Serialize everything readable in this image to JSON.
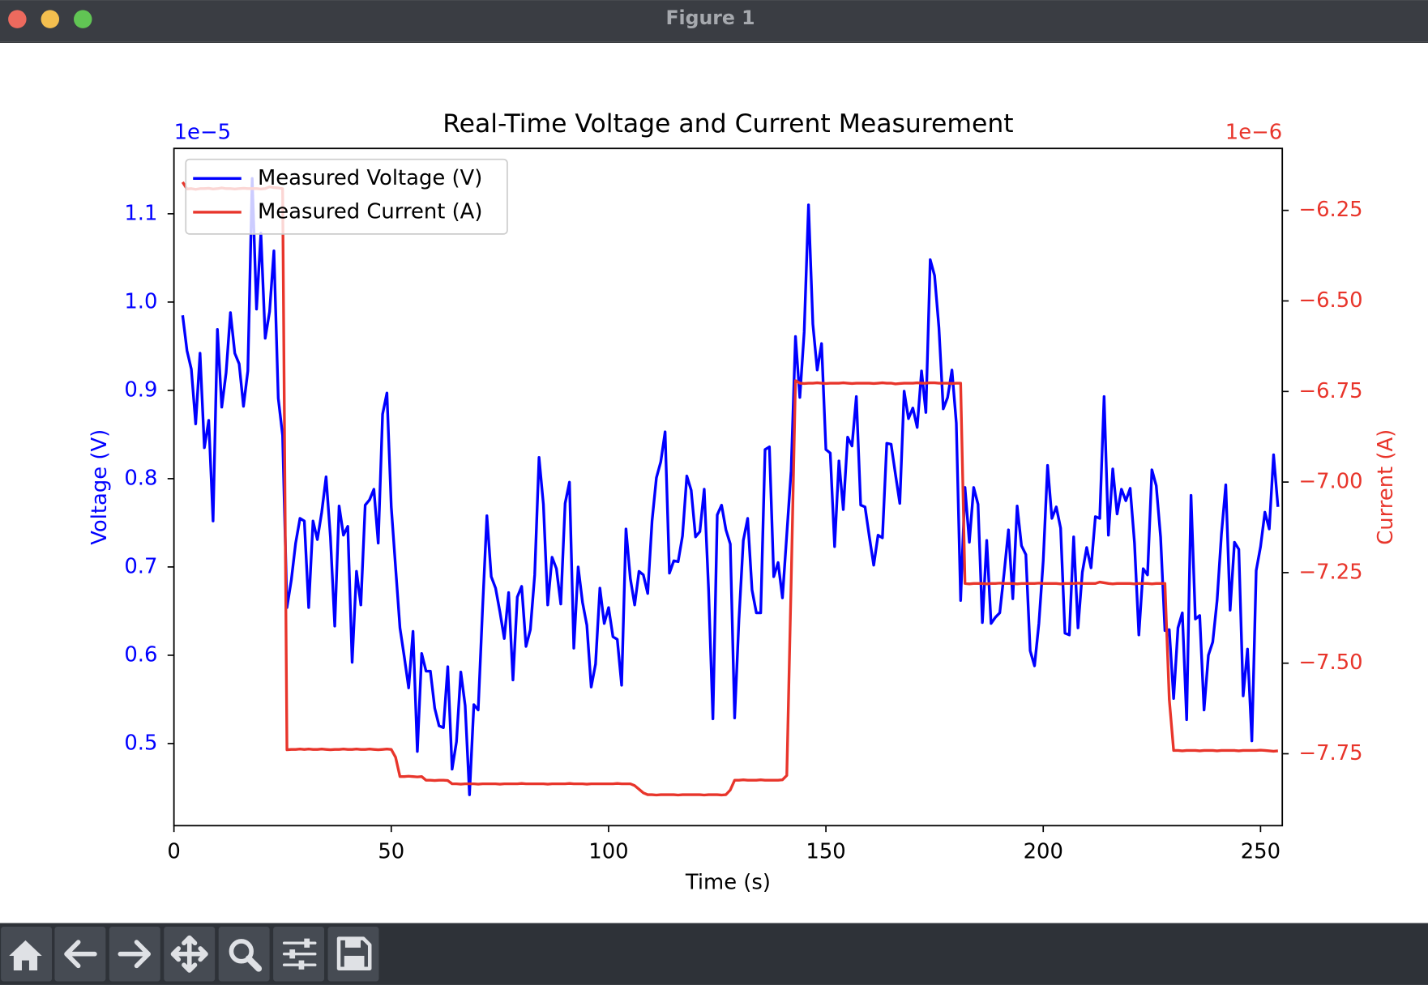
{
  "window": {
    "title": "Figure 1"
  },
  "chart_data": {
    "type": "line",
    "title": "Real-Time Voltage and Current Measurement",
    "x_label": "Time (s)",
    "y_label": "Voltage (V)",
    "y2_label": "Current (A)",
    "y_offset": "1e−5",
    "y2_offset": "1e−6",
    "legend": "upper left",
    "xlim": [
      0,
      255
    ],
    "ylim": [
      0.407,
      1.174
    ],
    "y2lim": [
      -7.9485,
      -6.079
    ],
    "xticks": [
      0,
      50,
      100,
      150,
      200,
      250
    ],
    "yticks": [
      0.5,
      0.6,
      0.7,
      0.8,
      0.9,
      {
        "value": 1,
        "label": "1.0"
      },
      1.1
    ],
    "y2ticks": [
      {
        "value": -7.75,
        "label": "−7.75"
      },
      {
        "value": -7.5,
        "label": "−7.50"
      },
      {
        "value": -7.25,
        "label": "−7.25"
      },
      {
        "value": -7,
        "label": "−7.00"
      },
      {
        "value": -6.75,
        "label": "−6.75"
      },
      {
        "value": -6.5,
        "label": "−6.50"
      },
      {
        "value": -6.25,
        "label": "−6.25"
      }
    ],
    "x": [
      2,
      3,
      4,
      5,
      6,
      7,
      8,
      9,
      10,
      11,
      12,
      13,
      14,
      15,
      16,
      17,
      18,
      19,
      20,
      21,
      22,
      23,
      24,
      25,
      26,
      27,
      28,
      29,
      30,
      31,
      32,
      33,
      34,
      35,
      36,
      37,
      38,
      39,
      40,
      41,
      42,
      43,
      44,
      45,
      46,
      47,
      48,
      49,
      50,
      51,
      52,
      53,
      54,
      55,
      56,
      57,
      58,
      59,
      60,
      61,
      62,
      63,
      64,
      65,
      66,
      67,
      68,
      69,
      70,
      71,
      72,
      73,
      74,
      75,
      76,
      77,
      78,
      79,
      80,
      81,
      82,
      83,
      84,
      85,
      86,
      87,
      88,
      89,
      90,
      91,
      92,
      93,
      94,
      95,
      96,
      97,
      98,
      99,
      100,
      101,
      102,
      103,
      104,
      105,
      106,
      107,
      108,
      109,
      110,
      111,
      112,
      113,
      114,
      115,
      116,
      117,
      118,
      119,
      120,
      121,
      122,
      123,
      124,
      125,
      126,
      127,
      128,
      129,
      130,
      131,
      132,
      133,
      134,
      135,
      136,
      137,
      138,
      139,
      140,
      141,
      142,
      143,
      144,
      145,
      146,
      147,
      148,
      149,
      150,
      151,
      152,
      153,
      154,
      155,
      156,
      157,
      158,
      159,
      160,
      161,
      162,
      163,
      164,
      165,
      166,
      167,
      168,
      169,
      170,
      171,
      172,
      173,
      174,
      175,
      176,
      177,
      178,
      179,
      180,
      181,
      182,
      183,
      184,
      185,
      186,
      187,
      188,
      189,
      190,
      191,
      192,
      193,
      194,
      195,
      196,
      197,
      198,
      199,
      200,
      201,
      202,
      203,
      204,
      205,
      206,
      207,
      208,
      209,
      210,
      211,
      212,
      213,
      214,
      215,
      216,
      217,
      218,
      219,
      220,
      221,
      222,
      223,
      224,
      225,
      226,
      227,
      228,
      229,
      230,
      231,
      232,
      233,
      234,
      235,
      236,
      237,
      238,
      239,
      240,
      241,
      242,
      243,
      244,
      245,
      246,
      247,
      248,
      249,
      250,
      251,
      252,
      253,
      254
    ],
    "series": [
      {
        "name": "Measured Voltage (V)",
        "color": "#0000ff",
        "values": [
          0.985,
          0.945,
          0.924,
          0.862,
          0.942,
          0.835,
          0.866,
          0.752,
          0.969,
          0.881,
          0.92,
          0.988,
          0.942,
          0.93,
          0.882,
          0.922,
          1.14,
          0.992,
          1.078,
          0.959,
          0.989,
          1.058,
          0.891,
          0.849,
          0.654,
          0.685,
          0.727,
          0.755,
          0.752,
          0.654,
          0.752,
          0.731,
          0.762,
          0.802,
          0.734,
          0.633,
          0.769,
          0.736,
          0.746,
          0.592,
          0.695,
          0.657,
          0.77,
          0.776,
          0.788,
          0.727,
          0.873,
          0.897,
          0.768,
          0.699,
          0.631,
          0.598,
          0.563,
          0.627,
          0.491,
          0.602,
          0.582,
          0.582,
          0.54,
          0.52,
          0.518,
          0.587,
          0.471,
          0.502,
          0.581,
          0.543,
          0.442,
          0.544,
          0.538,
          0.652,
          0.758,
          0.689,
          0.676,
          0.649,
          0.619,
          0.671,
          0.572,
          0.666,
          0.678,
          0.61,
          0.629,
          0.691,
          0.824,
          0.771,
          0.657,
          0.711,
          0.698,
          0.658,
          0.772,
          0.796,
          0.608,
          0.7,
          0.66,
          0.634,
          0.564,
          0.59,
          0.676,
          0.636,
          0.654,
          0.621,
          0.618,
          0.566,
          0.743,
          0.687,
          0.657,
          0.695,
          0.691,
          0.67,
          0.752,
          0.801,
          0.819,
          0.853,
          0.693,
          0.707,
          0.706,
          0.735,
          0.803,
          0.787,
          0.734,
          0.74,
          0.788,
          0.675,
          0.528,
          0.759,
          0.77,
          0.742,
          0.726,
          0.529,
          0.641,
          0.73,
          0.755,
          0.674,
          0.648,
          0.648,
          0.833,
          0.836,
          0.689,
          0.705,
          0.665,
          0.737,
          0.809,
          0.961,
          0.892,
          0.966,
          1.11,
          0.975,
          0.923,
          0.953,
          0.833,
          0.829,
          0.723,
          0.82,
          0.765,
          0.847,
          0.837,
          0.893,
          0.77,
          0.768,
          0.734,
          0.702,
          0.736,
          0.733,
          0.84,
          0.839,
          0.805,
          0.772,
          0.899,
          0.868,
          0.88,
          0.858,
          0.922,
          0.875,
          1.048,
          1.03,
          0.971,
          0.879,
          0.892,
          0.923,
          0.863,
          0.662,
          0.79,
          0.728,
          0.79,
          0.771,
          0.637,
          0.73,
          0.636,
          0.643,
          0.648,
          0.693,
          0.742,
          0.664,
          0.769,
          0.724,
          0.714,
          0.605,
          0.588,
          0.636,
          0.707,
          0.815,
          0.755,
          0.768,
          0.744,
          0.625,
          0.623,
          0.734,
          0.631,
          0.694,
          0.722,
          0.699,
          0.757,
          0.755,
          0.893,
          0.736,
          0.811,
          0.76,
          0.788,
          0.775,
          0.789,
          0.727,
          0.623,
          0.698,
          0.691,
          0.81,
          0.792,
          0.734,
          0.628,
          0.629,
          0.551,
          0.631,
          0.648,
          0.527,
          0.781,
          0.641,
          0.645,
          0.538,
          0.6,
          0.615,
          0.662,
          0.737,
          0.793,
          0.651,
          0.728,
          0.72,
          0.554,
          0.607,
          0.503,
          0.696,
          0.723,
          0.762,
          0.743,
          0.827,
          0.768
        ]
      },
      {
        "name": "Measured Current (A)",
        "color": "#e8352b",
        "axis": "y2",
        "values": [
          -6.172,
          -6.191,
          -6.19,
          -6.192,
          -6.19,
          -6.19,
          -6.189,
          -6.191,
          -6.19,
          -6.188,
          -6.19,
          -6.19,
          -6.191,
          -6.19,
          -6.189,
          -6.19,
          -6.19,
          -6.19,
          -6.191,
          -6.19,
          -6.185,
          -6.187,
          -6.188,
          -6.19,
          -7.739,
          -7.738,
          -7.738,
          -7.737,
          -7.738,
          -7.737,
          -7.738,
          -7.738,
          -7.737,
          -7.738,
          -7.739,
          -7.738,
          -7.738,
          -7.737,
          -7.738,
          -7.738,
          -7.737,
          -7.738,
          -7.738,
          -7.737,
          -7.738,
          -7.739,
          -7.738,
          -7.737,
          -7.738,
          -7.76,
          -7.813,
          -7.813,
          -7.812,
          -7.813,
          -7.814,
          -7.813,
          -7.823,
          -7.823,
          -7.824,
          -7.823,
          -7.823,
          -7.824,
          -7.833,
          -7.833,
          -7.834,
          -7.833,
          -7.833,
          -7.833,
          -7.834,
          -7.833,
          -7.833,
          -7.833,
          -7.833,
          -7.834,
          -7.833,
          -7.833,
          -7.833,
          -7.833,
          -7.832,
          -7.833,
          -7.833,
          -7.833,
          -7.833,
          -7.833,
          -7.834,
          -7.833,
          -7.833,
          -7.833,
          -7.833,
          -7.832,
          -7.833,
          -7.833,
          -7.833,
          -7.834,
          -7.833,
          -7.833,
          -7.833,
          -7.833,
          -7.833,
          -7.833,
          -7.832,
          -7.833,
          -7.833,
          -7.833,
          -7.838,
          -7.848,
          -7.858,
          -7.863,
          -7.863,
          -7.864,
          -7.863,
          -7.863,
          -7.863,
          -7.863,
          -7.864,
          -7.863,
          -7.863,
          -7.863,
          -7.863,
          -7.863,
          -7.864,
          -7.863,
          -7.863,
          -7.863,
          -7.864,
          -7.863,
          -7.85,
          -7.823,
          -7.823,
          -7.822,
          -7.823,
          -7.823,
          -7.823,
          -7.822,
          -7.823,
          -7.823,
          -7.823,
          -7.823,
          -7.822,
          -7.81,
          -7.278,
          -6.72,
          -6.727,
          -6.728,
          -6.727,
          -6.727,
          -6.726,
          -6.727,
          -6.728,
          -6.727,
          -6.727,
          -6.727,
          -6.726,
          -6.727,
          -6.728,
          -6.727,
          -6.727,
          -6.727,
          -6.727,
          -6.728,
          -6.727,
          -6.726,
          -6.727,
          -6.727,
          -6.729,
          -6.728,
          -6.727,
          -6.727,
          -6.727,
          -6.726,
          -6.727,
          -6.727,
          -6.726,
          -6.726,
          -6.727,
          -6.727,
          -6.727,
          -6.728,
          -6.727,
          -6.727,
          -7.28,
          -7.281,
          -7.28,
          -7.28,
          -7.28,
          -7.281,
          -7.28,
          -7.28,
          -7.279,
          -7.28,
          -7.28,
          -7.28,
          -7.281,
          -7.28,
          -7.28,
          -7.28,
          -7.28,
          -7.279,
          -7.28,
          -7.28,
          -7.28,
          -7.28,
          -7.281,
          -7.28,
          -7.28,
          -7.28,
          -7.279,
          -7.28,
          -7.28,
          -7.28,
          -7.28,
          -7.276,
          -7.278,
          -7.28,
          -7.281,
          -7.28,
          -7.28,
          -7.28,
          -7.28,
          -7.281,
          -7.28,
          -7.28,
          -7.28,
          -7.281,
          -7.28,
          -7.28,
          -7.28,
          -7.6,
          -7.741,
          -7.741,
          -7.742,
          -7.741,
          -7.741,
          -7.741,
          -7.742,
          -7.741,
          -7.741,
          -7.741,
          -7.742,
          -7.741,
          -7.741,
          -7.741,
          -7.741,
          -7.742,
          -7.741,
          -7.741,
          -7.741,
          -7.741,
          -7.74,
          -7.741,
          -7.742,
          -7.743,
          -7.742
        ]
      }
    ]
  }
}
